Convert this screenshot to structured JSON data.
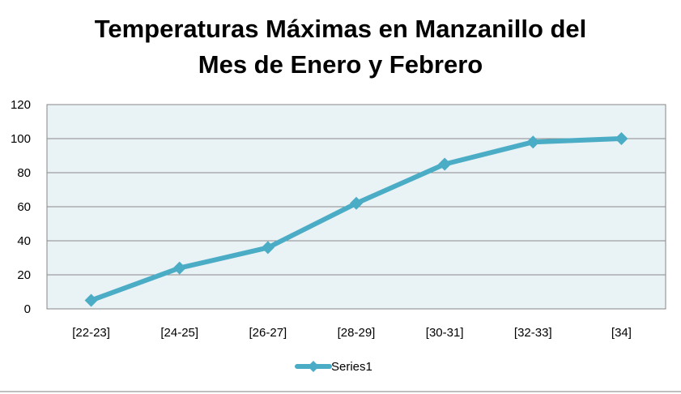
{
  "chart_data": {
    "type": "line",
    "title_line1": "Temperaturas Máximas en Manzanillo del",
    "title_line2": "Mes de Enero y Febrero",
    "categories": [
      "[22-23]",
      "[24-25]",
      "[26-27]",
      "[28-29]",
      "[30-31]",
      "[32-33]",
      "[34]"
    ],
    "series": [
      {
        "name": "Series1",
        "values": [
          5,
          24,
          36,
          62,
          85,
          98,
          100
        ],
        "color": "#4bacc6"
      }
    ],
    "ylim": [
      0,
      120
    ],
    "yticks": [
      0,
      20,
      40,
      60,
      80,
      100,
      120
    ],
    "grid": true,
    "plot_background": "#e9f2f5",
    "legend_position": "bottom"
  }
}
